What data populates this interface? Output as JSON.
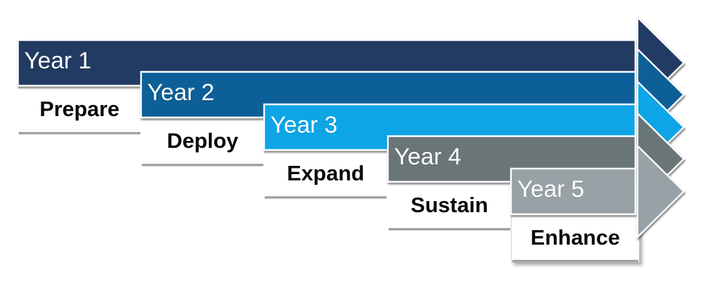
{
  "diagram": {
    "type": "staggered-arrow-roadmap",
    "years": [
      {
        "year_label": "Year 1",
        "phase_label": "Prepare",
        "color": "#203a64"
      },
      {
        "year_label": "Year 2",
        "phase_label": "Deploy",
        "color": "#0d5f98"
      },
      {
        "year_label": "Year 3",
        "phase_label": "Expand",
        "color": "#0ba5e6"
      },
      {
        "year_label": "Year 4",
        "phase_label": "Sustain",
        "color": "#6b7478"
      },
      {
        "year_label": "Year 5",
        "phase_label": "Enhance",
        "color": "#98a1a6"
      }
    ],
    "styles": {
      "background": "#ffffff",
      "year_text_color": "#ffffff",
      "phase_text_color": "#0a0a0a",
      "underline_color": "#9da2a5",
      "shape_outline_color": "#ffffff"
    }
  }
}
